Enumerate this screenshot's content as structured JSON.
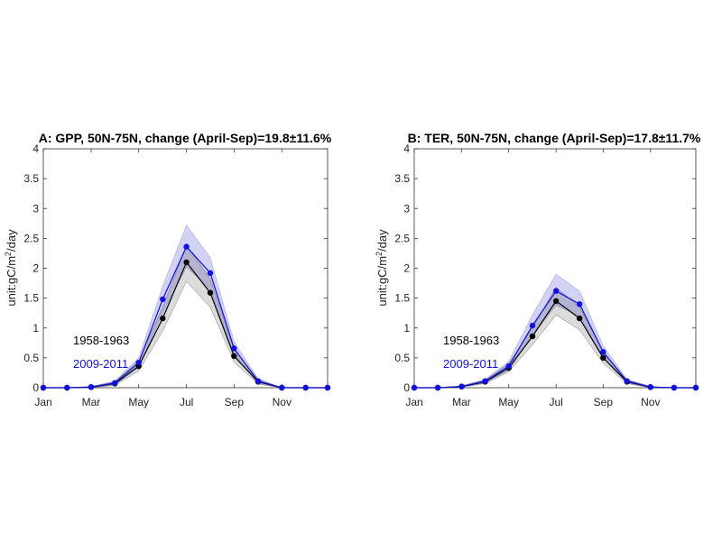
{
  "colors": {
    "old_line": "#000000",
    "new_line": "#1010e0",
    "old_band": "#000000",
    "new_band": "#3333cc"
  },
  "chart_data": [
    {
      "type": "line",
      "title": "A: GPP, 50N-75N, change (April-Sep)=19.8±11.6%",
      "ylabel_text": "unit:gC/m",
      "ylabel_sup": "2",
      "ylabel_tail": "/day",
      "xlim": [
        1,
        12
      ],
      "ylim": [
        0,
        4
      ],
      "x": [
        1,
        1.92,
        2.85,
        3.77,
        4.69,
        5.62,
        6.54,
        7.46,
        8.38,
        9.31,
        10.23,
        11.15,
        12
      ],
      "xticks": [
        {
          "v": 1,
          "label": "Jan"
        },
        {
          "v": 2.85,
          "label": "Mar"
        },
        {
          "v": 4.69,
          "label": "May"
        },
        {
          "v": 6.54,
          "label": "Jul"
        },
        {
          "v": 8.38,
          "label": "Sep"
        },
        {
          "v": 10.23,
          "label": "Nov"
        }
      ],
      "yticks": [
        {
          "v": 0,
          "label": "0"
        },
        {
          "v": 0.5,
          "label": "0.5"
        },
        {
          "v": 1,
          "label": "1"
        },
        {
          "v": 1.5,
          "label": "1.5"
        },
        {
          "v": 2,
          "label": "2"
        },
        {
          "v": 2.5,
          "label": "2.5"
        },
        {
          "v": 3,
          "label": "3"
        },
        {
          "v": 3.5,
          "label": "3.5"
        },
        {
          "v": 4,
          "label": "4"
        }
      ],
      "legend": [
        "1958-1963",
        "2009-2011"
      ],
      "series": [
        {
          "name": "1958-1963",
          "values": [
            0,
            0,
            0.01,
            0.07,
            0.36,
            1.16,
            2.1,
            1.59,
            0.53,
            0.1,
            0,
            0,
            0
          ],
          "band_low": [
            0,
            0,
            0,
            0.04,
            0.28,
            0.95,
            1.78,
            1.35,
            0.43,
            0.06,
            0,
            0,
            0
          ],
          "band_high": [
            0,
            0,
            0.02,
            0.1,
            0.45,
            1.35,
            2.38,
            1.82,
            0.64,
            0.14,
            0,
            0,
            0
          ]
        },
        {
          "name": "2009-2011",
          "values": [
            0,
            0,
            0.01,
            0.08,
            0.42,
            1.48,
            2.36,
            1.92,
            0.66,
            0.11,
            0,
            0,
            0
          ],
          "band_low": [
            0,
            0,
            0,
            0.05,
            0.34,
            1.25,
            2.02,
            1.65,
            0.55,
            0.07,
            0,
            0,
            0
          ],
          "band_high": [
            0,
            0,
            0.02,
            0.11,
            0.5,
            1.7,
            2.72,
            2.18,
            0.77,
            0.15,
            0,
            0,
            0
          ]
        }
      ]
    },
    {
      "type": "line",
      "title": "B: TER, 50N-75N, change (April-Sep)=17.8±11.7%",
      "ylabel_text": "unit:gC/m",
      "ylabel_sup": "2",
      "ylabel_tail": "/day",
      "xlim": [
        1,
        12
      ],
      "ylim": [
        0,
        4
      ],
      "x": [
        1,
        1.92,
        2.85,
        3.77,
        4.69,
        5.62,
        6.54,
        7.46,
        8.38,
        9.31,
        10.23,
        11.15,
        12
      ],
      "xticks": [
        {
          "v": 1,
          "label": "Jan"
        },
        {
          "v": 2.85,
          "label": "Mar"
        },
        {
          "v": 4.69,
          "label": "May"
        },
        {
          "v": 6.54,
          "label": "Jul"
        },
        {
          "v": 8.38,
          "label": "Sep"
        },
        {
          "v": 10.23,
          "label": "Nov"
        }
      ],
      "yticks": [
        {
          "v": 0,
          "label": "0"
        },
        {
          "v": 0.5,
          "label": "0.5"
        },
        {
          "v": 1,
          "label": "1"
        },
        {
          "v": 1.5,
          "label": "1.5"
        },
        {
          "v": 2,
          "label": "2"
        },
        {
          "v": 2.5,
          "label": "2.5"
        },
        {
          "v": 3,
          "label": "3"
        },
        {
          "v": 3.5,
          "label": "3.5"
        },
        {
          "v": 4,
          "label": "4"
        }
      ],
      "legend": [
        "1958-1963",
        "2009-2011"
      ],
      "series": [
        {
          "name": "1958-1963",
          "values": [
            0,
            0,
            0.02,
            0.1,
            0.33,
            0.86,
            1.45,
            1.16,
            0.5,
            0.1,
            0.01,
            0,
            0
          ],
          "band_low": [
            0,
            0,
            0.01,
            0.07,
            0.27,
            0.72,
            1.22,
            0.97,
            0.41,
            0.07,
            0,
            0,
            0
          ],
          "band_high": [
            0,
            0,
            0.03,
            0.13,
            0.4,
            1.0,
            1.68,
            1.35,
            0.6,
            0.13,
            0.02,
            0,
            0
          ]
        },
        {
          "name": "2009-2011",
          "values": [
            0,
            0,
            0.02,
            0.11,
            0.36,
            1.04,
            1.62,
            1.4,
            0.6,
            0.11,
            0.01,
            0,
            0
          ],
          "band_low": [
            0,
            0,
            0.01,
            0.08,
            0.29,
            0.88,
            1.38,
            1.2,
            0.5,
            0.08,
            0,
            0,
            0
          ],
          "band_high": [
            0,
            0,
            0.03,
            0.14,
            0.44,
            1.22,
            1.9,
            1.62,
            0.7,
            0.14,
            0.02,
            0,
            0
          ]
        }
      ]
    }
  ]
}
